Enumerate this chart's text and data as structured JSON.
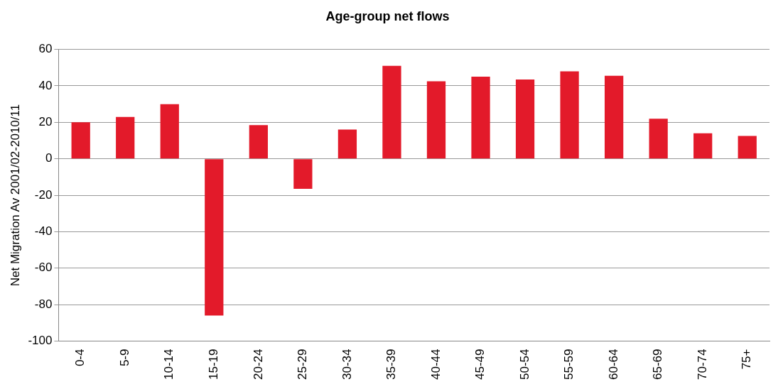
{
  "chart_data": {
    "type": "bar",
    "title": "Age-group net flows",
    "ylabel": "Net Migration Av 2001/02-2010/11",
    "categories": [
      "0-4",
      "5-9",
      "10-14",
      "15-19",
      "20-24",
      "25-29",
      "30-34",
      "35-39",
      "40-44",
      "45-49",
      "50-54",
      "55-59",
      "60-64",
      "65-69",
      "70-74",
      "75+"
    ],
    "values": [
      20,
      23,
      30,
      -86,
      18.5,
      -16.5,
      16,
      51,
      42.5,
      45,
      43.5,
      48,
      45.5,
      22,
      14,
      12.5
    ],
    "color": "#e31a2a",
    "ylim": [
      -100,
      60
    ],
    "yticks": [
      -100,
      -80,
      -60,
      -40,
      -20,
      0,
      20,
      40,
      60
    ],
    "grid": "y",
    "legend": false
  }
}
